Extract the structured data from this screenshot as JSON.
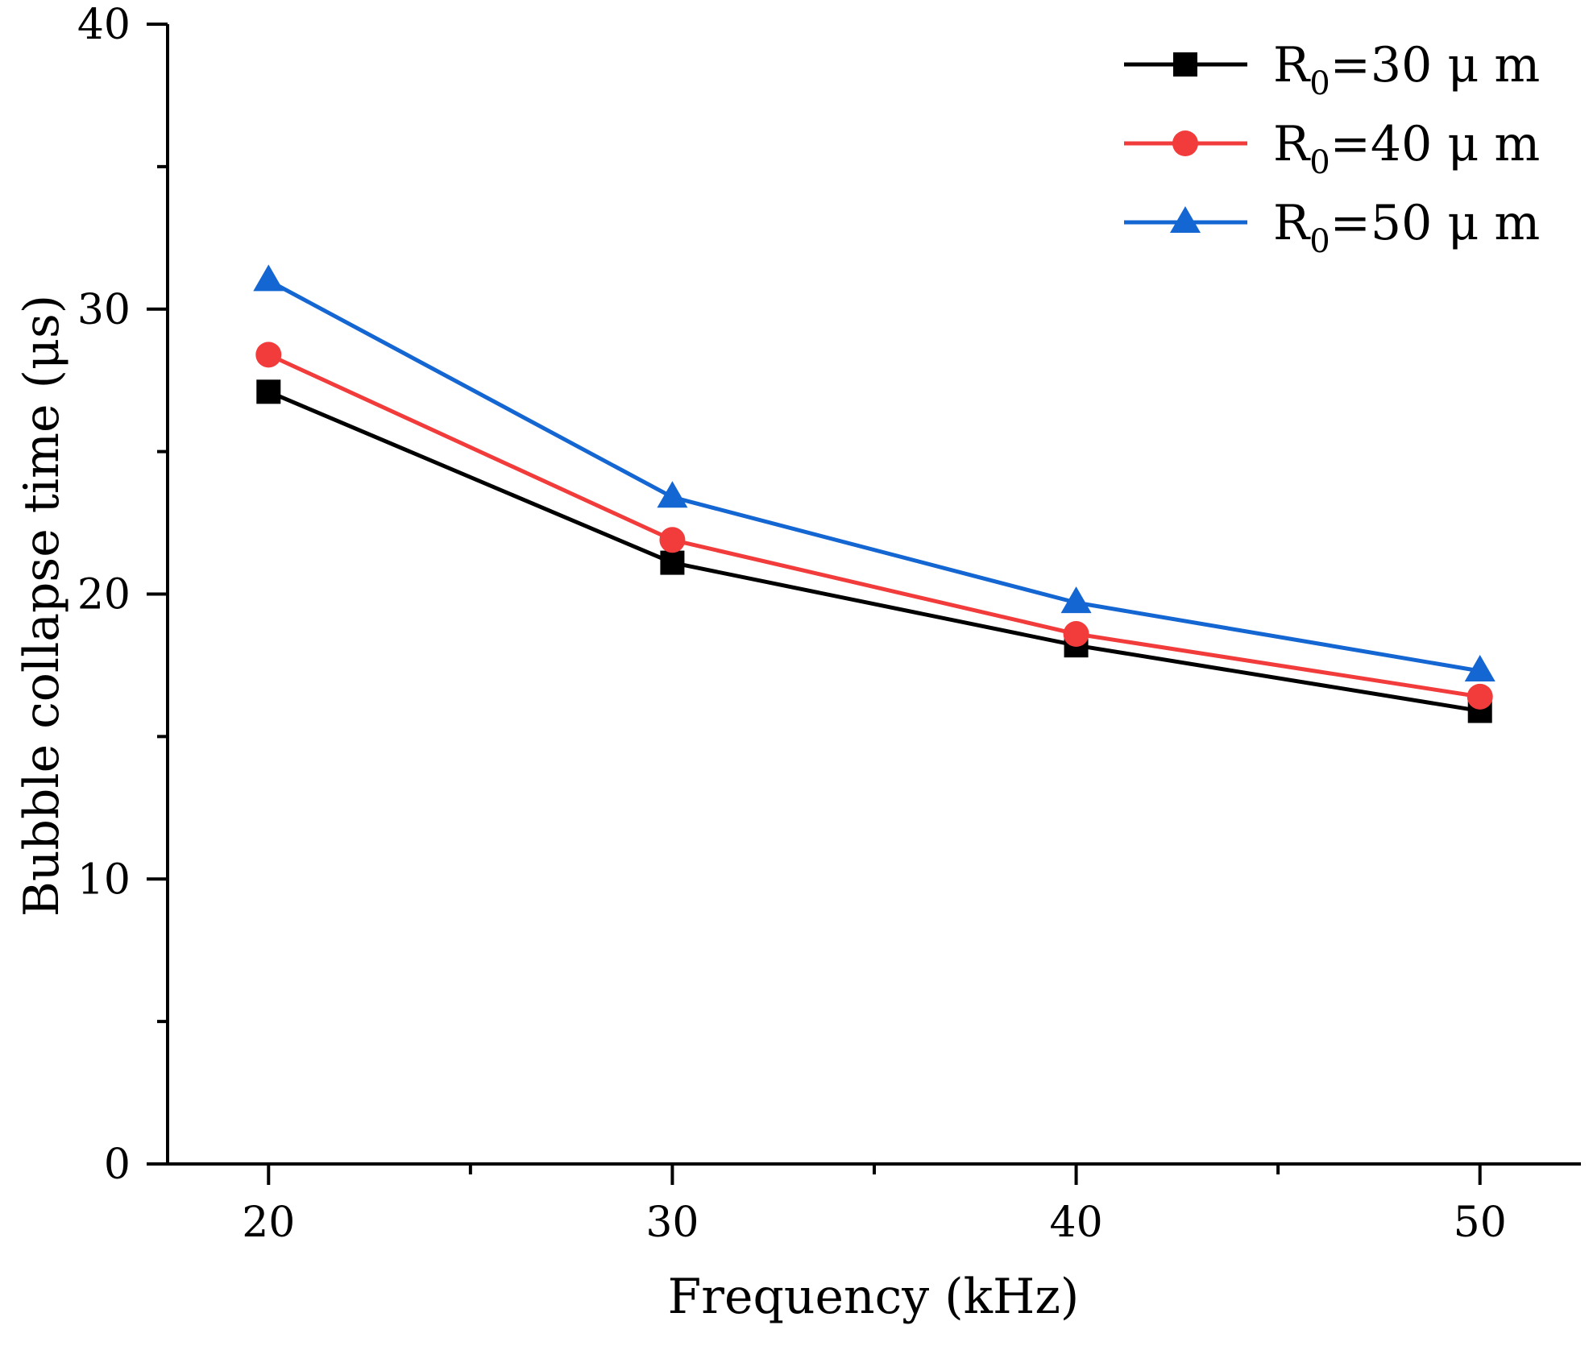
{
  "chart_data": {
    "type": "line",
    "title": "",
    "xlabel": "Frequency (kHz)",
    "ylabel": "Bubble collapse time (μs)",
    "xlim": [
      17.5,
      52.5
    ],
    "ylim": [
      0,
      40
    ],
    "x_ticks": [
      20,
      30,
      40,
      50
    ],
    "y_ticks": [
      0,
      10,
      20,
      30,
      40
    ],
    "grid": false,
    "legend_position": "top-right",
    "x": [
      20,
      30,
      40,
      50
    ],
    "series": [
      {
        "name": "R0=30 μm",
        "label_main": "R",
        "label_sub": "0",
        "label_rest": "=30 μ m",
        "color": "#000000",
        "marker": "square",
        "values": [
          27.1,
          21.1,
          18.2,
          15.9
        ]
      },
      {
        "name": "R0=40 μm",
        "label_main": "R",
        "label_sub": "0",
        "label_rest": "=40 μ m",
        "color": "#f23c3c",
        "marker": "circle",
        "values": [
          28.4,
          21.9,
          18.6,
          16.4
        ]
      },
      {
        "name": "R0=50 μm",
        "label_main": "R",
        "label_sub": "0",
        "label_rest": "=50 μ m",
        "color": "#1466d2",
        "marker": "triangle",
        "values": [
          31.0,
          23.4,
          19.7,
          17.3
        ]
      }
    ]
  }
}
